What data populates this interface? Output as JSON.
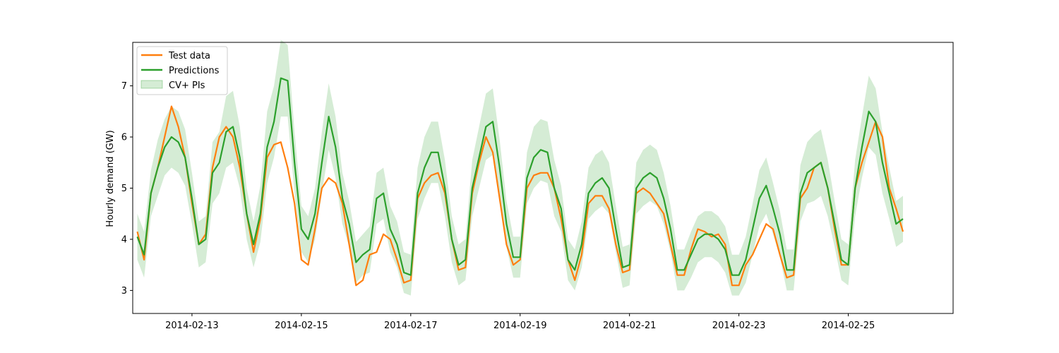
{
  "chart_data": {
    "type": "line",
    "title": "",
    "xlabel": "",
    "ylabel": "Hourly demand (GW)",
    "x_range": [
      "2014-02-11T22:00",
      "2014-02-26T22:00"
    ],
    "ylim": [
      2.55,
      7.85
    ],
    "x_ticks": [
      "2014-02-13",
      "2014-02-15",
      "2014-02-17",
      "2014-02-19",
      "2014-02-21",
      "2014-02-23",
      "2014-02-25"
    ],
    "y_ticks": [
      3,
      4,
      5,
      6,
      7
    ],
    "grid": false,
    "legend_position": "top-left",
    "x_unit": "hours since 2014-02-12T00:00",
    "series": [
      {
        "name": "Test data",
        "color": "#ff7f0e",
        "x": [
          0,
          3,
          6,
          9,
          12,
          15,
          18,
          21,
          24,
          27,
          30,
          33,
          36,
          39,
          42,
          45,
          48,
          51,
          54,
          57,
          60,
          63,
          66,
          69,
          72,
          75,
          78,
          81,
          84,
          87,
          90,
          93,
          96,
          99,
          102,
          105,
          108,
          111,
          114,
          117,
          120,
          123,
          126,
          129,
          132,
          135,
          138,
          141,
          144,
          147,
          150,
          153,
          156,
          159,
          162,
          165,
          168,
          171,
          174,
          177,
          180,
          183,
          186,
          189,
          192,
          195,
          198,
          201,
          204,
          207,
          210,
          213,
          216,
          219,
          222,
          225,
          228,
          231,
          234,
          237,
          240,
          243,
          246,
          249,
          252,
          255,
          258,
          261,
          264,
          267,
          270,
          273,
          276,
          279,
          282,
          285,
          288,
          291,
          294,
          297,
          300,
          303,
          306,
          309,
          312,
          315,
          318,
          321,
          324,
          327,
          330,
          333,
          336
        ],
        "y": [
          4.15,
          3.6,
          4.9,
          5.4,
          6.0,
          6.6,
          6.2,
          5.6,
          4.7,
          3.9,
          4.1,
          5.4,
          6.0,
          6.2,
          6.0,
          5.4,
          4.5,
          3.75,
          4.4,
          5.6,
          5.85,
          5.9,
          5.4,
          4.7,
          3.6,
          3.5,
          4.2,
          5.0,
          5.2,
          5.1,
          4.7,
          3.9,
          3.1,
          3.2,
          3.7,
          3.75,
          4.1,
          4.0,
          3.6,
          3.15,
          3.2,
          4.8,
          5.1,
          5.25,
          5.3,
          4.9,
          4.0,
          3.4,
          3.45,
          4.9,
          5.5,
          6.0,
          5.7,
          4.8,
          3.9,
          3.5,
          3.6,
          5.0,
          5.25,
          5.3,
          5.3,
          5.0,
          4.4,
          3.6,
          3.2,
          3.7,
          4.7,
          4.85,
          4.85,
          4.6,
          3.9,
          3.35,
          3.4,
          4.9,
          5.0,
          4.9,
          4.7,
          4.5,
          3.9,
          3.3,
          3.3,
          3.8,
          4.2,
          4.15,
          4.05,
          4.1,
          3.9,
          3.1,
          3.1,
          3.5,
          3.7,
          4.0,
          4.3,
          4.2,
          3.7,
          3.25,
          3.3,
          4.8,
          5.0,
          5.4,
          5.5,
          5.0,
          4.2,
          3.5,
          3.5,
          5.0,
          5.5,
          5.9,
          6.3,
          6.0,
          5.0,
          4.6,
          4.15
        ]
      },
      {
        "name": "Predictions",
        "color": "#2ca02c",
        "x": [
          0,
          3,
          6,
          9,
          12,
          15,
          18,
          21,
          24,
          27,
          30,
          33,
          36,
          39,
          42,
          45,
          48,
          51,
          54,
          57,
          60,
          63,
          66,
          69,
          72,
          75,
          78,
          81,
          84,
          87,
          90,
          93,
          96,
          99,
          102,
          105,
          108,
          111,
          114,
          117,
          120,
          123,
          126,
          129,
          132,
          135,
          138,
          141,
          144,
          147,
          150,
          153,
          156,
          159,
          162,
          165,
          168,
          171,
          174,
          177,
          180,
          183,
          186,
          189,
          192,
          195,
          198,
          201,
          204,
          207,
          210,
          213,
          216,
          219,
          222,
          225,
          228,
          231,
          234,
          237,
          240,
          243,
          246,
          249,
          252,
          255,
          258,
          261,
          264,
          267,
          270,
          273,
          276,
          279,
          282,
          285,
          288,
          291,
          294,
          297,
          300,
          303,
          306,
          309,
          312,
          315,
          318,
          321,
          324,
          327,
          330,
          333,
          336
        ],
        "y": [
          4.05,
          3.7,
          4.9,
          5.4,
          5.8,
          6.0,
          5.9,
          5.6,
          4.8,
          3.9,
          4.0,
          5.3,
          5.5,
          6.1,
          6.2,
          5.6,
          4.5,
          3.9,
          4.5,
          5.8,
          6.3,
          7.15,
          7.1,
          5.5,
          4.2,
          4.0,
          4.5,
          5.5,
          6.4,
          5.8,
          4.8,
          4.3,
          3.55,
          3.7,
          3.8,
          4.8,
          4.9,
          4.2,
          3.9,
          3.35,
          3.3,
          4.9,
          5.4,
          5.7,
          5.7,
          5.0,
          4.0,
          3.5,
          3.6,
          5.0,
          5.6,
          6.2,
          6.3,
          5.4,
          4.3,
          3.65,
          3.65,
          5.2,
          5.6,
          5.75,
          5.7,
          5.0,
          4.6,
          3.6,
          3.4,
          3.9,
          4.9,
          5.1,
          5.2,
          5.0,
          4.2,
          3.45,
          3.5,
          5.0,
          5.2,
          5.3,
          5.2,
          4.8,
          4.2,
          3.4,
          3.4,
          3.7,
          4.0,
          4.1,
          4.1,
          4.0,
          3.8,
          3.3,
          3.3,
          3.6,
          4.2,
          4.8,
          5.05,
          4.6,
          4.1,
          3.4,
          3.4,
          4.9,
          5.3,
          5.4,
          5.5,
          5.0,
          4.3,
          3.6,
          3.5,
          5.0,
          5.8,
          6.5,
          6.3,
          5.5,
          4.9,
          4.3,
          4.4
        ]
      }
    ],
    "interval": {
      "name": "CV+ PIs",
      "color": "#2ca02c",
      "opacity": 0.2,
      "half_width": [
        0.45,
        0.45,
        0.45,
        0.55,
        0.55,
        0.6,
        0.6,
        0.55,
        0.5,
        0.45,
        0.45,
        0.6,
        0.6,
        0.7,
        0.7,
        0.6,
        0.5,
        0.45,
        0.55,
        0.7,
        0.7,
        0.75,
        0.7,
        0.6,
        0.45,
        0.45,
        0.5,
        0.6,
        0.65,
        0.6,
        0.5,
        0.45,
        0.4,
        0.4,
        0.45,
        0.5,
        0.5,
        0.45,
        0.45,
        0.4,
        0.4,
        0.5,
        0.6,
        0.6,
        0.6,
        0.55,
        0.45,
        0.4,
        0.4,
        0.55,
        0.6,
        0.65,
        0.65,
        0.55,
        0.45,
        0.4,
        0.4,
        0.5,
        0.6,
        0.6,
        0.6,
        0.55,
        0.45,
        0.4,
        0.4,
        0.45,
        0.5,
        0.55,
        0.55,
        0.5,
        0.45,
        0.4,
        0.4,
        0.5,
        0.55,
        0.55,
        0.55,
        0.5,
        0.45,
        0.4,
        0.4,
        0.45,
        0.45,
        0.45,
        0.45,
        0.45,
        0.45,
        0.4,
        0.4,
        0.45,
        0.5,
        0.55,
        0.55,
        0.5,
        0.45,
        0.4,
        0.4,
        0.55,
        0.6,
        0.65,
        0.65,
        0.55,
        0.45,
        0.4,
        0.4,
        0.55,
        0.6,
        0.7,
        0.65,
        0.6,
        0.5,
        0.45,
        0.45
      ]
    }
  }
}
